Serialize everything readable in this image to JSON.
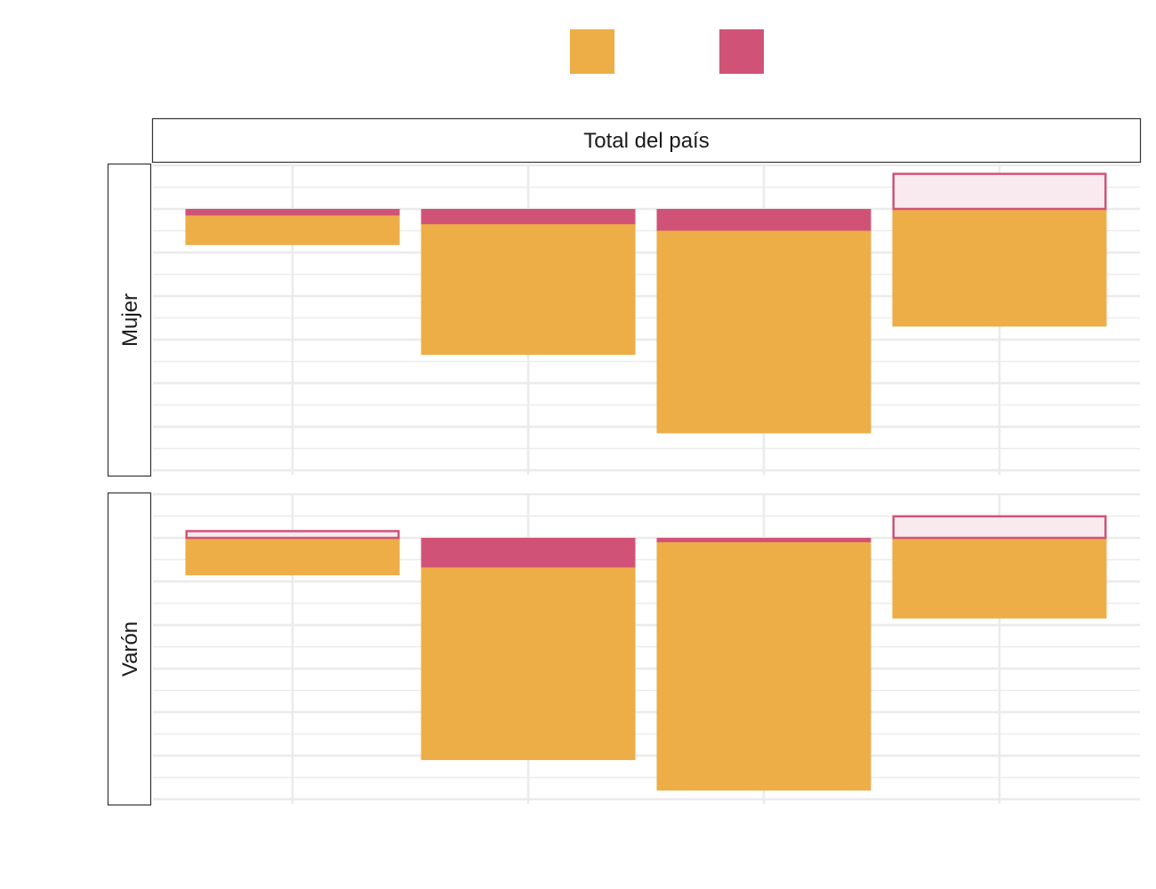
{
  "chart_data": {
    "type": "bar",
    "stacked": true,
    "categories": [
      "",
      "",
      "",
      ""
    ],
    "facet_column": "Total del país",
    "panels": [
      {
        "label": "Mujer",
        "bars": [
          {
            "segments": [
              {
                "series": 0,
                "from": 0,
                "to": -0.83
              },
              {
                "series": 1,
                "from": 0,
                "to": -0.15
              }
            ]
          },
          {
            "segments": [
              {
                "series": 0,
                "from": 0,
                "to": -3.35
              },
              {
                "series": 1,
                "from": 0,
                "to": -0.35
              }
            ]
          },
          {
            "segments": [
              {
                "series": 0,
                "from": 0,
                "to": -5.15
              },
              {
                "series": 1,
                "from": 0,
                "to": -0.5
              }
            ]
          },
          {
            "segments": [
              {
                "series": 0,
                "from": 0,
                "to": -2.7
              },
              {
                "series": 1,
                "from": 0,
                "to": 0.83,
                "outline": true
              }
            ]
          }
        ]
      },
      {
        "label": "Varón",
        "bars": [
          {
            "segments": [
              {
                "series": 0,
                "from": 0,
                "to": -0.86
              },
              {
                "series": 1,
                "from": 0,
                "to": 0.18,
                "outline": true
              }
            ]
          },
          {
            "segments": [
              {
                "series": 0,
                "from": 0,
                "to": -5.1
              },
              {
                "series": 1,
                "from": 0,
                "to": -0.68
              }
            ]
          },
          {
            "segments": [
              {
                "series": 0,
                "from": 0,
                "to": -5.8
              },
              {
                "series": 1,
                "from": 0,
                "to": -0.1
              }
            ]
          },
          {
            "segments": [
              {
                "series": 0,
                "from": 0,
                "to": -1.85
              },
              {
                "series": 1,
                "from": 0,
                "to": 0.52,
                "outline": true
              }
            ]
          }
        ]
      }
    ],
    "series": [
      {
        "name": "",
        "color": "#EDAD47"
      },
      {
        "name": "",
        "color": "#D05377"
      }
    ],
    "outline_fill": "#F8EAEF",
    "ylim": [
      -6.1,
      1.0
    ],
    "grid": true,
    "legend_position": "top"
  }
}
